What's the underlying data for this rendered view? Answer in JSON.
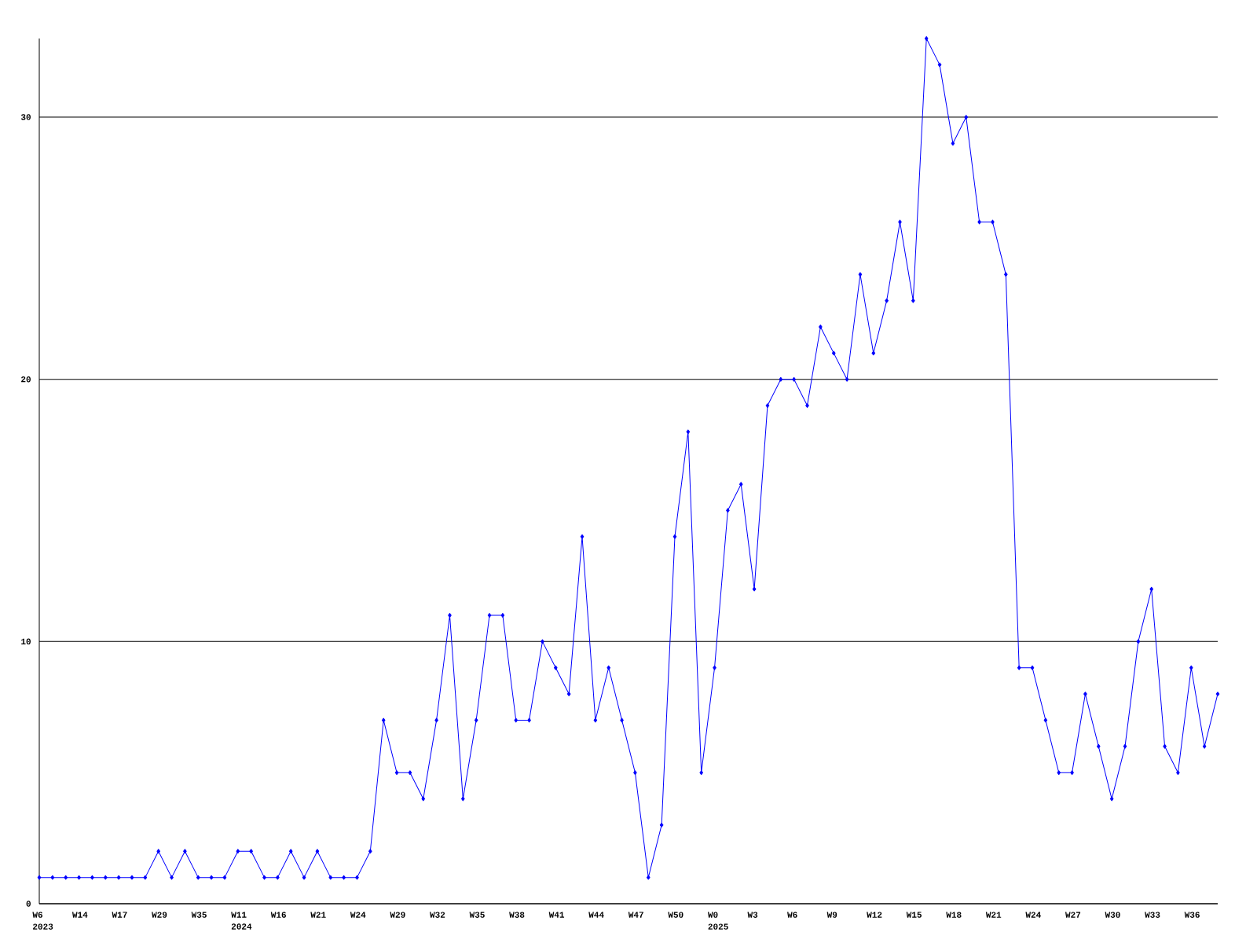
{
  "chart_data": {
    "type": "line",
    "categories": [
      "W6 2023",
      null,
      null,
      "W14",
      null,
      null,
      "W17",
      null,
      null,
      "W29",
      null,
      null,
      "W35",
      null,
      null,
      "W11 2024",
      null,
      null,
      "W16",
      null,
      null,
      "W21",
      null,
      null,
      "W24",
      null,
      null,
      "W29",
      null,
      null,
      "W32",
      null,
      null,
      "W35",
      null,
      null,
      "W38",
      null,
      null,
      "W41",
      null,
      null,
      "W44",
      null,
      null,
      "W47",
      null,
      null,
      "W50",
      null,
      null,
      "W0 2025",
      null,
      null,
      "W3",
      null,
      null,
      "W6",
      null,
      null,
      "W9",
      null,
      null,
      "W12",
      null,
      null,
      "W15",
      null,
      null,
      "W18",
      null,
      null,
      "W21",
      null,
      null,
      "W24",
      null,
      null,
      "W27",
      null,
      null,
      "W30",
      null,
      null,
      "W33",
      null,
      null,
      "W36",
      null,
      null
    ],
    "series": [
      {
        "color": "#0000ff",
        "values": [
          1,
          1,
          1,
          1,
          1,
          1,
          1,
          1,
          1,
          2,
          1,
          2,
          1,
          1,
          1,
          2,
          2,
          1,
          1,
          2,
          1,
          2,
          1,
          1,
          1,
          2,
          7,
          5,
          5,
          4,
          7,
          11,
          4,
          7,
          11,
          11,
          7,
          7,
          10,
          9,
          8,
          14,
          7,
          9,
          7,
          5,
          1,
          3,
          14,
          18,
          5,
          9,
          15,
          16,
          12,
          19,
          20,
          20,
          19,
          22,
          21,
          20,
          24,
          21,
          23,
          26,
          23,
          33,
          32,
          29,
          30,
          26,
          26,
          24,
          9,
          9,
          7,
          5,
          5,
          8,
          6,
          4,
          6,
          10,
          12,
          6,
          5,
          9,
          6,
          8
        ]
      }
    ],
    "ylim": [
      0,
      33
    ],
    "yticks": [
      0,
      10,
      20,
      30
    ],
    "grid": "y",
    "marker": "diamond",
    "line_style": "solid"
  }
}
